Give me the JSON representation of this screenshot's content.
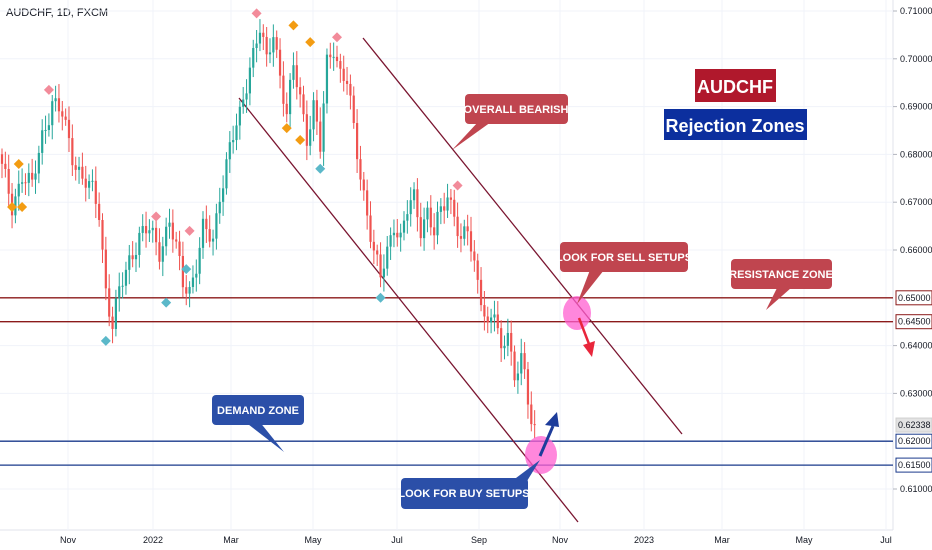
{
  "symbol_label": "AUDCHF, 1D, FXCM",
  "colors": {
    "bull": "#26a69a",
    "bear": "#ef5350",
    "resistance_line": "#8b1a1a",
    "demand_line": "#1a3a8b",
    "channel": "#7a1530",
    "callout_red": "#c0454f",
    "callout_blue": "#2b4fa8",
    "title_red": "#b0182c",
    "title_blue": "#0c2f9e",
    "marker_pink": "#f28b9a",
    "marker_orange": "#f39c12",
    "marker_teal": "#5bb8c9",
    "highlight_pink": "#ff5fd0",
    "arrow_red": "#e8263b",
    "arrow_blue": "#1d3c9a"
  },
  "title": {
    "line1": "AUDCHF",
    "line2": "Rejection Zones"
  },
  "callouts": {
    "overall_bearish": "OVERALL BEARISH",
    "sell_setups": "LOOK FOR SELL SETUPS",
    "resistance_zone": "RESISTANCE ZONE",
    "demand_zone": "DEMAND ZONE",
    "buy_setups": "LOOK FOR BUY SETUPS"
  },
  "chart_data": {
    "type": "candlestick",
    "y_axis": {
      "min": 0.6,
      "max": 0.712,
      "ticks": [
        "0.71000",
        "0.70000",
        "0.69000",
        "0.68000",
        "0.67000",
        "0.66000",
        "0.64000",
        "0.63000",
        "0.61000"
      ]
    },
    "x_axis": {
      "ticks": [
        "Nov",
        "2022",
        "Mar",
        "May",
        "Jul",
        "Sep",
        "Nov",
        "2023",
        "Mar",
        "May",
        "Jul"
      ]
    },
    "price_tags": [
      {
        "label": "0.65000",
        "value": 0.65,
        "style": "resistance"
      },
      {
        "label": "0.64500",
        "value": 0.645,
        "style": "resistance"
      },
      {
        "label": "0.62338",
        "value": 0.62338,
        "style": "last"
      },
      {
        "label": "0.62000",
        "value": 0.62,
        "style": "demand"
      },
      {
        "label": "0.61500",
        "value": 0.615,
        "style": "demand"
      }
    ],
    "resistance_zone": [
      0.645,
      0.65
    ],
    "demand_zone": [
      0.615,
      0.62
    ],
    "last_price": 0.62338,
    "price_path": [
      [
        0,
        0.677
      ],
      [
        3,
        0.669
      ],
      [
        6,
        0.676
      ],
      [
        9,
        0.673
      ],
      [
        12,
        0.684
      ],
      [
        15,
        0.691
      ],
      [
        18,
        0.688
      ],
      [
        21,
        0.68
      ],
      [
        24,
        0.675
      ],
      [
        27,
        0.672
      ],
      [
        29,
        0.668
      ],
      [
        31,
        0.652
      ],
      [
        33,
        0.644
      ],
      [
        35,
        0.651
      ],
      [
        38,
        0.658
      ],
      [
        41,
        0.663
      ],
      [
        44,
        0.664
      ],
      [
        47,
        0.66
      ],
      [
        50,
        0.666
      ],
      [
        52,
        0.66
      ],
      [
        54,
        0.653
      ],
      [
        56,
        0.652
      ],
      [
        58,
        0.657
      ],
      [
        60,
        0.664
      ],
      [
        63,
        0.662
      ],
      [
        65,
        0.672
      ],
      [
        68,
        0.681
      ],
      [
        71,
        0.688
      ],
      [
        74,
        0.699
      ],
      [
        77,
        0.706
      ],
      [
        79,
        0.699
      ],
      [
        81,
        0.706
      ],
      [
        83,
        0.697
      ],
      [
        85,
        0.688
      ],
      [
        87,
        0.698
      ],
      [
        89,
        0.692
      ],
      [
        91,
        0.684
      ],
      [
        93,
        0.69
      ],
      [
        95,
        0.681
      ],
      [
        97,
        0.699
      ],
      [
        99,
        0.703
      ],
      [
        101,
        0.697
      ],
      [
        103,
        0.695
      ],
      [
        105,
        0.685
      ],
      [
        107,
        0.676
      ],
      [
        109,
        0.668
      ],
      [
        111,
        0.659
      ],
      [
        113,
        0.654
      ],
      [
        115,
        0.66
      ],
      [
        117,
        0.666
      ],
      [
        119,
        0.662
      ],
      [
        121,
        0.668
      ],
      [
        123,
        0.671
      ],
      [
        125,
        0.665
      ],
      [
        127,
        0.668
      ],
      [
        129,
        0.663
      ],
      [
        131,
        0.668
      ],
      [
        133,
        0.672
      ],
      [
        135,
        0.668
      ],
      [
        137,
        0.661
      ],
      [
        139,
        0.664
      ],
      [
        141,
        0.657
      ],
      [
        143,
        0.651
      ],
      [
        145,
        0.643
      ],
      [
        147,
        0.647
      ],
      [
        149,
        0.638
      ],
      [
        151,
        0.645
      ],
      [
        153,
        0.632
      ],
      [
        155,
        0.638
      ],
      [
        157,
        0.627
      ],
      [
        159,
        0.624
      ]
    ],
    "markers": [
      {
        "type": "high",
        "color": "pink",
        "i": 14,
        "price": 0.6935
      },
      {
        "type": "high",
        "color": "orange",
        "i": 5,
        "price": 0.678
      },
      {
        "type": "low",
        "color": "orange",
        "i": 3,
        "price": 0.669
      },
      {
        "type": "low",
        "color": "orange",
        "i": 6,
        "price": 0.669
      },
      {
        "type": "low",
        "color": "teal",
        "i": 31,
        "price": 0.641
      },
      {
        "type": "high",
        "color": "pink",
        "i": 46,
        "price": 0.667
      },
      {
        "type": "low",
        "color": "teal",
        "i": 49,
        "price": 0.649
      },
      {
        "type": "high",
        "color": "pink",
        "i": 56,
        "price": 0.664
      },
      {
        "type": "low",
        "color": "teal",
        "i": 55,
        "price": 0.656
      },
      {
        "type": "high",
        "color": "pink",
        "i": 76,
        "price": 0.7095
      },
      {
        "type": "high",
        "color": "orange",
        "i": 87,
        "price": 0.707
      },
      {
        "type": "high",
        "color": "orange",
        "i": 92,
        "price": 0.7035
      },
      {
        "type": "low",
        "color": "orange",
        "i": 85,
        "price": 0.6855
      },
      {
        "type": "low",
        "color": "orange",
        "i": 89,
        "price": 0.683
      },
      {
        "type": "low",
        "color": "teal",
        "i": 95,
        "price": 0.677
      },
      {
        "type": "high",
        "color": "pink",
        "i": 100,
        "price": 0.7045
      },
      {
        "type": "low",
        "color": "teal",
        "i": 113,
        "price": 0.65
      },
      {
        "type": "high",
        "color": "pink",
        "i": 136,
        "price": 0.6735
      }
    ],
    "channel_lines": [
      {
        "from": [
          363,
          38
        ],
        "to": [
          682,
          434
        ]
      },
      {
        "from": [
          239,
          98
        ],
        "to": [
          578,
          522
        ]
      }
    ]
  }
}
